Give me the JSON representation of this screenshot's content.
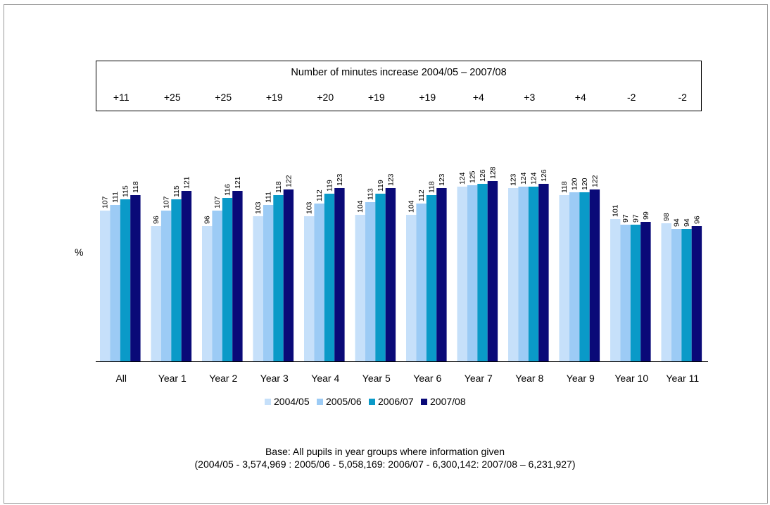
{
  "box_title": "Number of minutes increase 2004/05 – 2007/08",
  "increases": [
    "+11",
    "+25",
    "+25",
    "+19",
    "+20",
    "+19",
    "+19",
    "+4",
    "+3",
    "+4",
    "-2",
    "-2"
  ],
  "ylabel": "%",
  "colors": [
    "#c6e0fa",
    "#9ccbf5",
    "#0a9ac8",
    "#0a0a78"
  ],
  "chart_data": {
    "type": "bar",
    "title": "",
    "xlabel": "",
    "ylabel": "%",
    "categories": [
      "All",
      "Year 1",
      "Year 2",
      "Year 3",
      "Year 4",
      "Year 5",
      "Year 6",
      "Year 7",
      "Year 8",
      "Year 9",
      "Year 10",
      "Year 11"
    ],
    "series": [
      {
        "name": "2004/05",
        "values": [
          107,
          96,
          96,
          103,
          103,
          104,
          104,
          124,
          123,
          118,
          101,
          98
        ]
      },
      {
        "name": "2005/06",
        "values": [
          111,
          107,
          107,
          111,
          112,
          113,
          112,
          125,
          124,
          120,
          97,
          94
        ]
      },
      {
        "name": "2006/07",
        "values": [
          115,
          115,
          116,
          118,
          119,
          119,
          118,
          126,
          124,
          120,
          97,
          94
        ]
      },
      {
        "name": "2007/08",
        "values": [
          118,
          121,
          121,
          122,
          123,
          123,
          123,
          128,
          126,
          122,
          99,
          96
        ]
      }
    ],
    "ylim": [
      0,
      130
    ],
    "legend": "bottom",
    "grid": false,
    "data_labels": true
  },
  "base_line1": "Base: All pupils in year groups where information given",
  "base_line2": "(2004/05 - 3,574,969 : 2005/06 - 5,058,169: 2006/07 - 6,300,142: 2007/08 – 6,231,927)"
}
